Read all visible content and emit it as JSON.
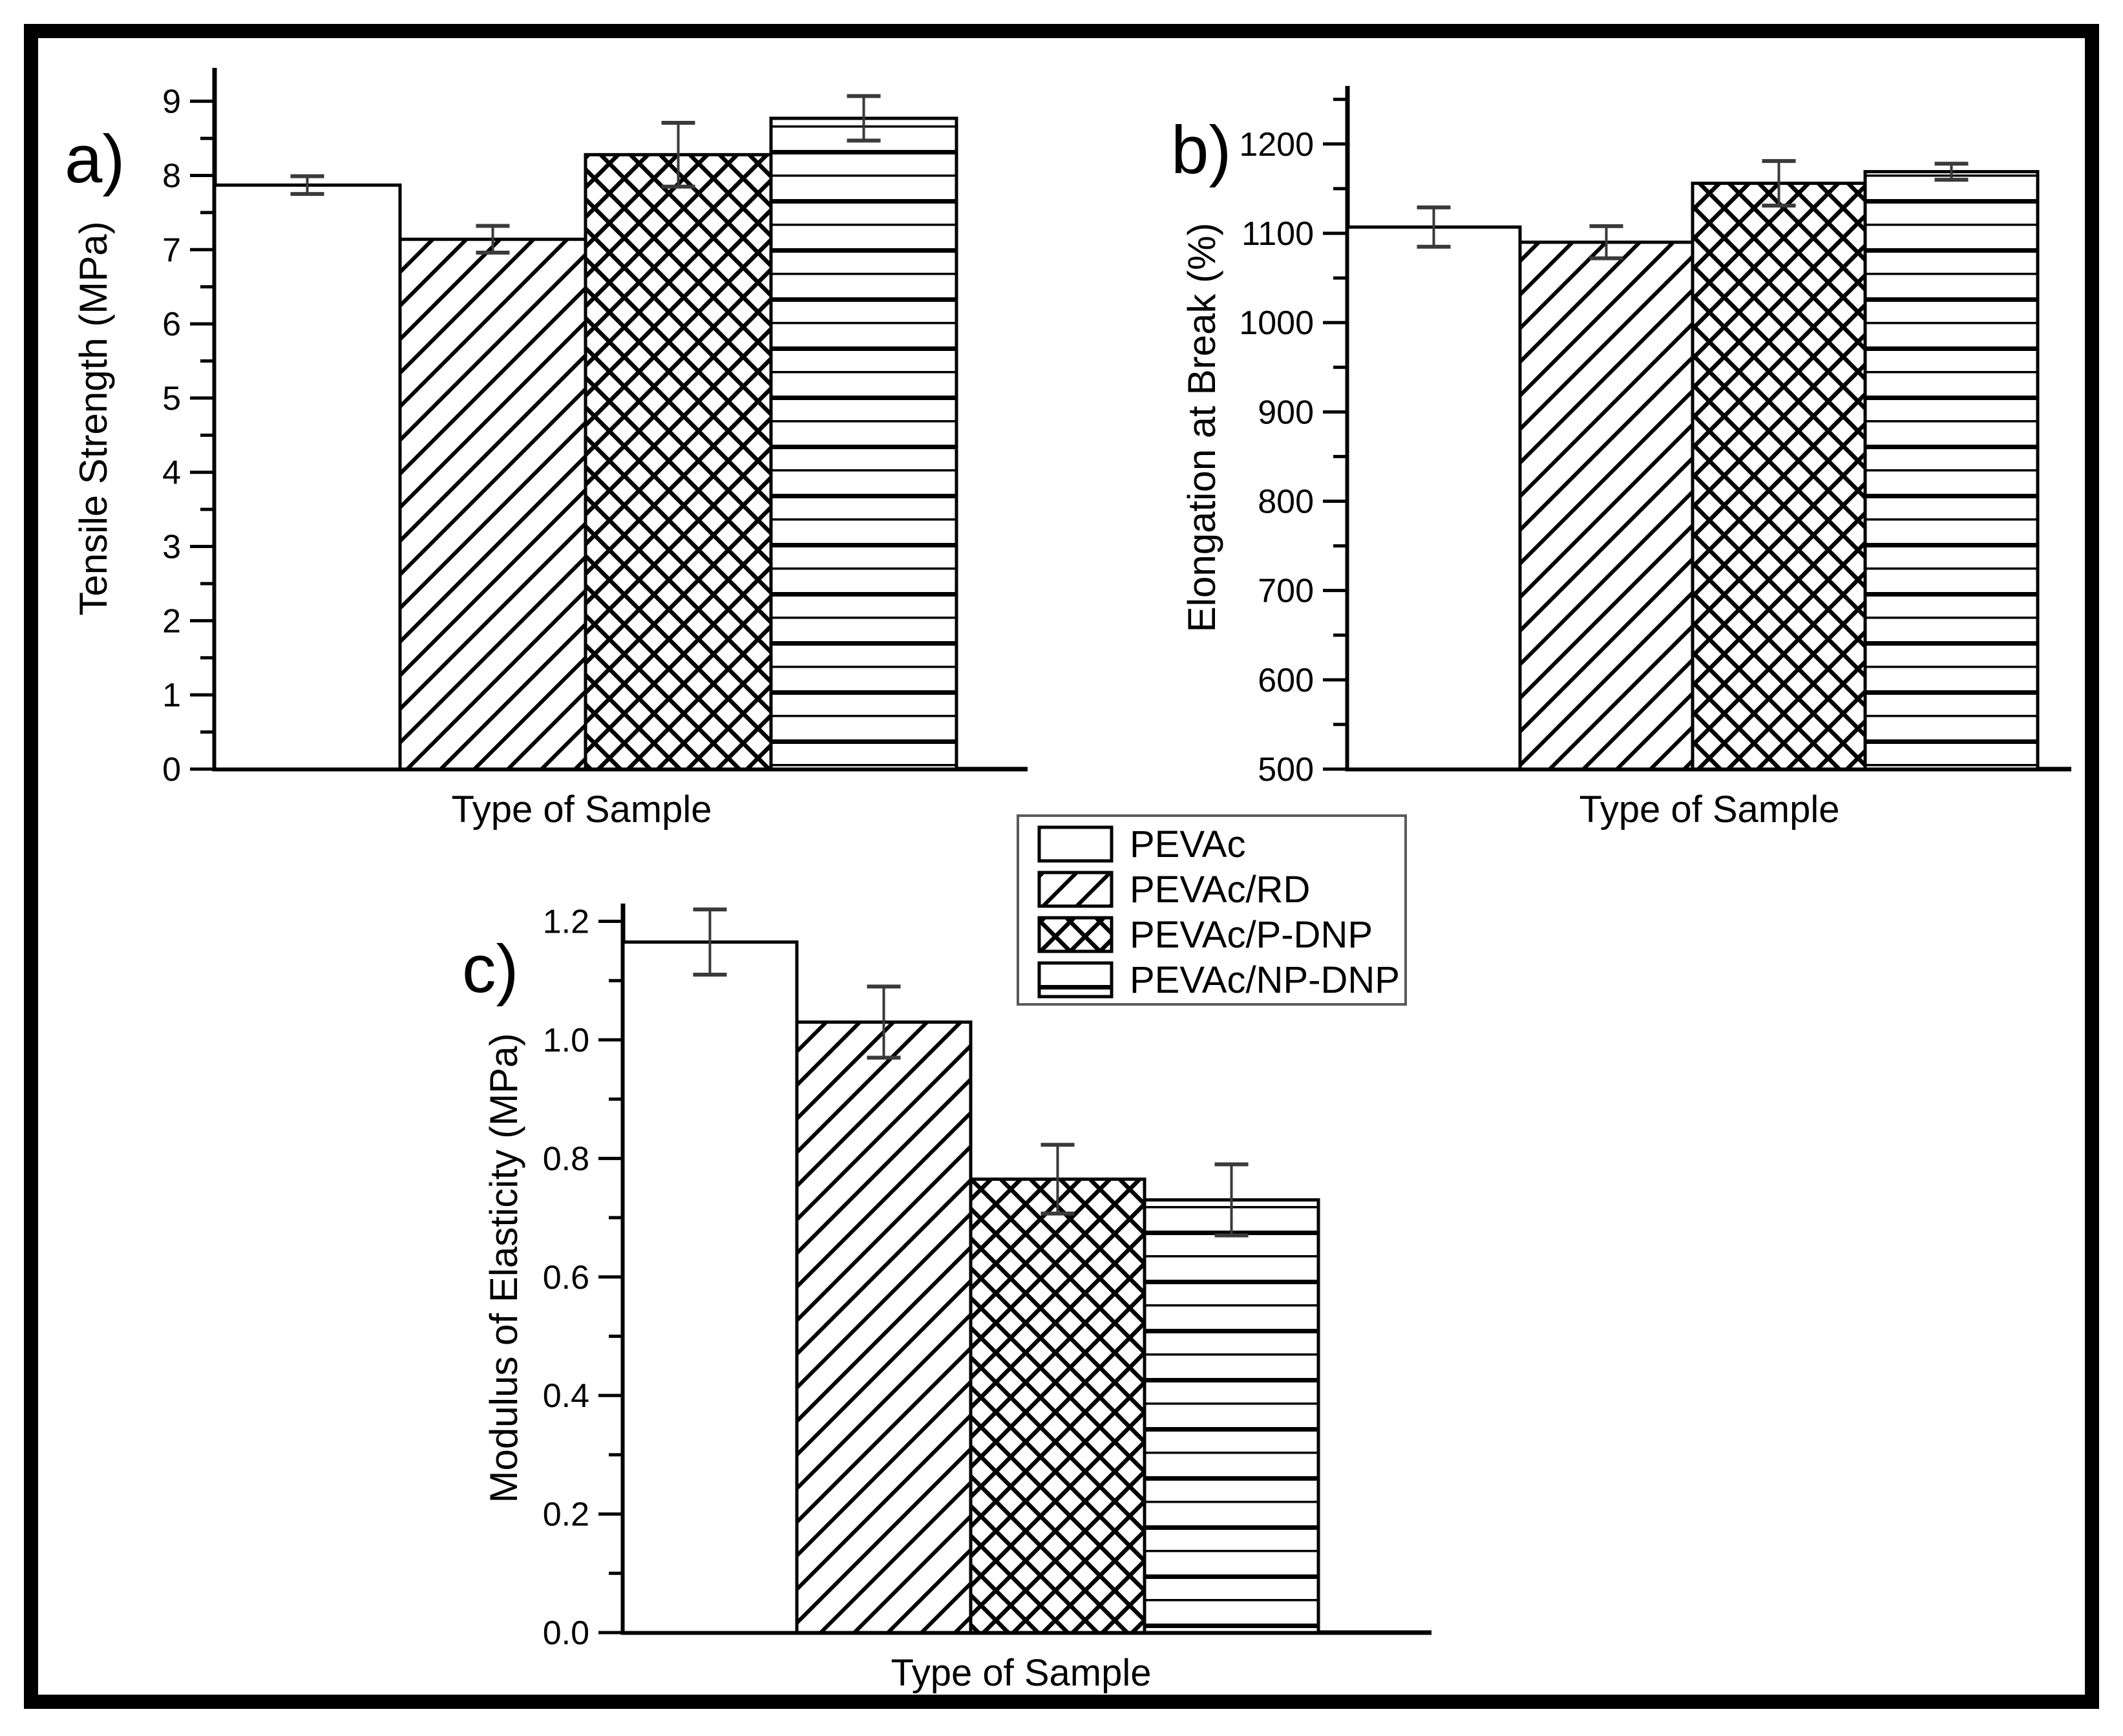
{
  "figure": {
    "panels": [
      {
        "id": "a",
        "letter": "a)"
      },
      {
        "id": "b",
        "letter": "b)"
      },
      {
        "id": "c",
        "letter": "c)"
      }
    ],
    "frame_color": "#000000",
    "background": "#ffffff",
    "bar_outline_color": "#000000",
    "errorbar_color": "#3a3a3a"
  },
  "legend": {
    "entries": [
      {
        "label": "PEVAc",
        "pattern": "solid-white"
      },
      {
        "label": "PEVAc/RD",
        "pattern": "diagonal-hatch"
      },
      {
        "label": "PEVAc/P-DNP",
        "pattern": "crosshatch"
      },
      {
        "label": "PEVAc/NP-DNP",
        "pattern": "horizontal-lines"
      }
    ]
  },
  "chart_data": [
    {
      "type": "bar",
      "panel": "a",
      "title": "",
      "xlabel": "Type of Sample",
      "ylabel": "Tensile Strength (MPa)",
      "categories": [
        "PEVAc",
        "PEVAc/RD",
        "PEVAc/P-DNP",
        "PEVAc/NP-DNP"
      ],
      "values": [
        7.87,
        7.14,
        8.28,
        8.77
      ],
      "errors": [
        0.12,
        0.18,
        0.43,
        0.3
      ],
      "patterns": [
        "solid-white",
        "diagonal-hatch",
        "crosshatch",
        "horizontal-lines"
      ],
      "ylim": [
        0,
        9.45
      ],
      "ytick_values": [
        0,
        1,
        2,
        3,
        4,
        5,
        6,
        7,
        8,
        9
      ],
      "ytick_labels": [
        "0",
        "1",
        "2",
        "3",
        "4",
        "5",
        "6",
        "7",
        "8",
        "9"
      ],
      "minor_step": 0.5,
      "grid": false,
      "legend_position": "shared-center"
    },
    {
      "type": "bar",
      "panel": "b",
      "title": "",
      "xlabel": "Type of Sample",
      "ylabel": "Elongation at Break (%)",
      "categories": [
        "PEVAc",
        "PEVAc/RD",
        "PEVAc/P-DNP",
        "PEVAc/NP-DNP"
      ],
      "values": [
        1107,
        1090,
        1156,
        1169
      ],
      "errors": [
        22,
        18,
        25,
        9
      ],
      "patterns": [
        "solid-white",
        "diagonal-hatch",
        "crosshatch",
        "horizontal-lines"
      ],
      "ylim": [
        500,
        1265
      ],
      "ytick_values": [
        500,
        600,
        700,
        800,
        900,
        1000,
        1100,
        1200
      ],
      "ytick_labels": [
        "500",
        "600",
        "700",
        "800",
        "900",
        "1000",
        "1100",
        "1200"
      ],
      "minor_step": 50,
      "grid": false,
      "legend_position": "shared-center"
    },
    {
      "type": "bar",
      "panel": "c",
      "title": "",
      "xlabel": "Type of Sample",
      "ylabel": "Modulus of Elasticity (MPa)",
      "categories": [
        "PEVAc",
        "PEVAc/RD",
        "PEVAc/P-DNP",
        "PEVAc/NP-DNP"
      ],
      "values": [
        1.165,
        1.03,
        0.765,
        0.73
      ],
      "errors": [
        0.055,
        0.06,
        0.058,
        0.06
      ],
      "patterns": [
        "solid-white",
        "diagonal-hatch",
        "crosshatch",
        "horizontal-lines"
      ],
      "ylim": [
        0,
        1.23
      ],
      "ytick_values": [
        0.0,
        0.2,
        0.4,
        0.6,
        0.8,
        1.0,
        1.2
      ],
      "ytick_labels": [
        "0.0",
        "0.2",
        "0.4",
        "0.6",
        "0.8",
        "1.0",
        "1.2"
      ],
      "minor_step": 0.1,
      "grid": false,
      "legend_position": "shared-center"
    }
  ]
}
